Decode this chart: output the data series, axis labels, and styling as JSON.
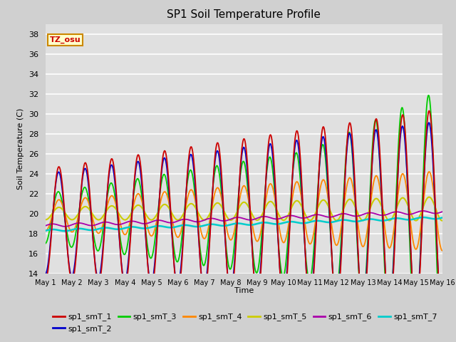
{
  "title": "SP1 Soil Temperature Profile",
  "xlabel": "Time",
  "ylabel": "Soil Temperature (C)",
  "ylim": [
    14,
    39
  ],
  "yticks": [
    14,
    16,
    18,
    20,
    22,
    24,
    26,
    28,
    30,
    32,
    34,
    36,
    38
  ],
  "xtick_labels": [
    "May 1",
    "May 2",
    "May 3",
    "May 4",
    "May 5",
    "May 6",
    "May 7",
    "May 8",
    "May 9",
    "May 10",
    "May 11",
    "May 12",
    "May 13",
    "May 14",
    "May 15",
    "May 16"
  ],
  "series_colors": {
    "sp1_smT_1": "#cc0000",
    "sp1_smT_2": "#0000cc",
    "sp1_smT_3": "#00cc00",
    "sp1_smT_4": "#ff8800",
    "sp1_smT_5": "#cccc00",
    "sp1_smT_6": "#aa00aa",
    "sp1_smT_7": "#00cccc"
  },
  "tz_label": "TZ_osu",
  "tz_color": "#cc0000",
  "tz_bg": "#ffffcc",
  "tz_border": "#cc8800",
  "plot_bg": "#e0e0e0",
  "fig_bg": "#d0d0d0",
  "grid_color": "#ffffff",
  "n_days": 15,
  "points_per_day": 96
}
